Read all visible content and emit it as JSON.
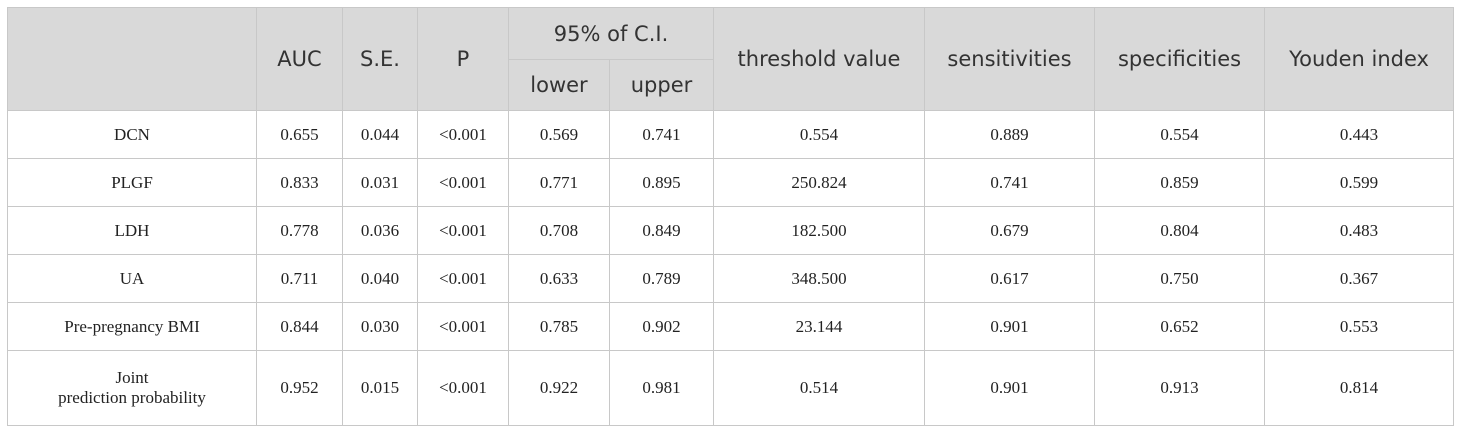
{
  "table": {
    "headers": {
      "corner": "",
      "auc": "AUC",
      "se": "S.E.",
      "p": "P",
      "ci": "95% of C.I.",
      "ci_lower": "lower",
      "ci_upper": "upper",
      "threshold": "threshold value",
      "sensitivities": "sensitivities",
      "specificities": "specificities",
      "youden": "Youden index"
    },
    "rows": [
      {
        "label": "DCN",
        "auc": "0.655",
        "se": "0.044",
        "p": "<0.001",
        "lower": "0.569",
        "upper": "0.741",
        "threshold": "0.554",
        "sens": "0.889",
        "spec": "0.554",
        "youden": "0.443"
      },
      {
        "label": "PLGF",
        "auc": "0.833",
        "se": "0.031",
        "p": "<0.001",
        "lower": "0.771",
        "upper": "0.895",
        "threshold": "250.824",
        "sens": "0.741",
        "spec": "0.859",
        "youden": "0.599"
      },
      {
        "label": "LDH",
        "auc": "0.778",
        "se": "0.036",
        "p": "<0.001",
        "lower": "0.708",
        "upper": "0.849",
        "threshold": "182.500",
        "sens": "0.679",
        "spec": "0.804",
        "youden": "0.483"
      },
      {
        "label": "UA",
        "auc": "0.711",
        "se": "0.040",
        "p": "<0.001",
        "lower": "0.633",
        "upper": "0.789",
        "threshold": "348.500",
        "sens": "0.617",
        "spec": "0.750",
        "youden": "0.367"
      },
      {
        "label": "Pre-pregnancy BMI",
        "auc": "0.844",
        "se": "0.030",
        "p": "<0.001",
        "lower": "0.785",
        "upper": "0.902",
        "threshold": "23.144",
        "sens": "0.901",
        "spec": "0.652",
        "youden": "0.553"
      },
      {
        "label": "Joint\nprediction probability",
        "auc": "0.952",
        "se": "0.015",
        "p": "<0.001",
        "lower": "0.922",
        "upper": "0.981",
        "threshold": "0.514",
        "sens": "0.901",
        "spec": "0.913",
        "youden": "0.814"
      }
    ]
  }
}
